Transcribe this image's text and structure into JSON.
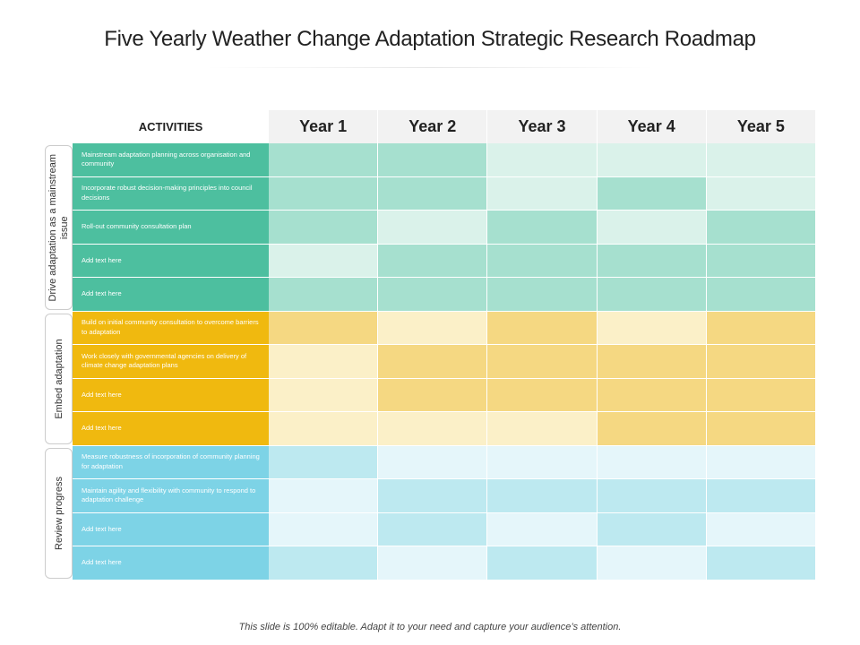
{
  "title": "Five Yearly Weather Change Adaptation Strategic Research Roadmap",
  "header": {
    "activities": "ACTIVITIES",
    "years": [
      "Year 1",
      "Year 2",
      "Year 3",
      "Year 4",
      "Year 5"
    ]
  },
  "groups": [
    {
      "label": "Drive adaptation as a mainstream issue",
      "rows": [
        "Mainstream adaptation planning across organisation and community",
        "Incorporate robust decision-making principles into council decisions",
        "Roll-out community consultation plan",
        "Add text here",
        "Add text here"
      ]
    },
    {
      "label": "Embed adaptation",
      "rows": [
        "Build on initial community consultation to overcome barriers to adaptation",
        "Work closely with governmental agencies on delivery of climate change adaptation plans",
        "Add text here",
        "Add text here"
      ]
    },
    {
      "label": "Review progress",
      "rows": [
        "Measure robustness of incorporation of community planning for adaptation",
        "Maintain agility and flexibility with community to respond to adaptation challenge",
        "Add text here",
        "Add text here"
      ]
    }
  ],
  "footer": "This slide is 100% editable. Adapt it to your need and capture your audience’s attention."
}
